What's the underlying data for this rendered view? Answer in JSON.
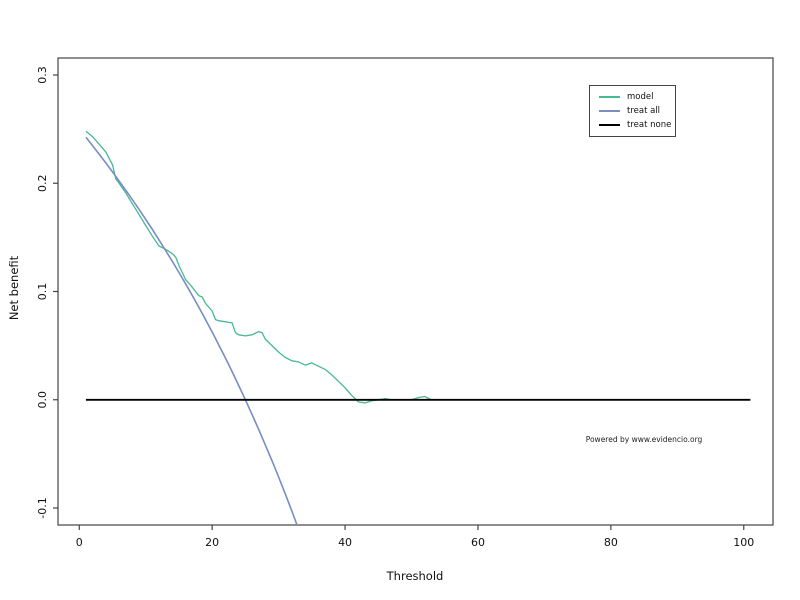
{
  "chart_data": {
    "type": "line",
    "title": "",
    "xlabel": "Threshold",
    "ylabel": "Net benefit",
    "watermark": "Powered by www.evidencio.org",
    "xlim": [
      -3.2,
      104.4
    ],
    "ylim": [
      -0.1157,
      0.3157
    ],
    "grid": false,
    "legend_position": "top-right",
    "xticks": [
      {
        "v": 0,
        "label": "0"
      },
      {
        "v": 20,
        "label": "20"
      },
      {
        "v": 40,
        "label": "40"
      },
      {
        "v": 60,
        "label": "60"
      },
      {
        "v": 80,
        "label": "80"
      },
      {
        "v": 100,
        "label": "100"
      }
    ],
    "yticks": [
      {
        "v": -0.1,
        "label": "-0.1"
      },
      {
        "v": 0.0,
        "label": "0.0"
      },
      {
        "v": 0.1,
        "label": "0.1"
      },
      {
        "v": 0.2,
        "label": "0.2"
      },
      {
        "v": 0.3,
        "label": "0.3"
      }
    ],
    "series": [
      {
        "name": "model",
        "color": "#46b996",
        "width": 1.3,
        "points": [
          [
            1,
            0.248
          ],
          [
            2,
            0.243
          ],
          [
            3,
            0.236
          ],
          [
            4,
            0.229
          ],
          [
            5,
            0.217
          ],
          [
            5.5,
            0.204
          ],
          [
            6,
            0.2
          ],
          [
            7,
            0.191
          ],
          [
            8,
            0.181
          ],
          [
            9,
            0.171
          ],
          [
            10,
            0.161
          ],
          [
            11,
            0.151
          ],
          [
            12,
            0.142
          ],
          [
            13,
            0.139
          ],
          [
            14,
            0.135
          ],
          [
            14.5,
            0.132
          ],
          [
            15,
            0.124
          ],
          [
            16,
            0.111
          ],
          [
            17,
            0.104
          ],
          [
            18,
            0.096
          ],
          [
            18.5,
            0.095
          ],
          [
            19,
            0.089
          ],
          [
            20,
            0.082
          ],
          [
            20.5,
            0.074
          ],
          [
            21,
            0.073
          ],
          [
            22,
            0.072
          ],
          [
            23,
            0.071
          ],
          [
            23.5,
            0.062
          ],
          [
            24,
            0.06
          ],
          [
            25,
            0.059
          ],
          [
            26,
            0.06
          ],
          [
            27,
            0.063
          ],
          [
            27.5,
            0.062
          ],
          [
            28,
            0.056
          ],
          [
            29,
            0.05
          ],
          [
            30,
            0.044
          ],
          [
            31,
            0.039
          ],
          [
            32,
            0.036
          ],
          [
            33,
            0.035
          ],
          [
            34,
            0.032
          ],
          [
            35,
            0.034
          ],
          [
            36,
            0.031
          ],
          [
            37,
            0.028
          ],
          [
            38,
            0.023
          ],
          [
            39,
            0.017
          ],
          [
            40,
            0.011
          ],
          [
            41,
            0.004
          ],
          [
            42,
            -0.002
          ],
          [
            43,
            -0.003
          ],
          [
            44,
            -0.001
          ],
          [
            45,
            0
          ],
          [
            46,
            0.001
          ],
          [
            47,
            0
          ],
          [
            48,
            0
          ],
          [
            50,
            0
          ],
          [
            51,
            0.002
          ],
          [
            52,
            0.003
          ],
          [
            53,
            0
          ],
          [
            55,
            0
          ],
          [
            60,
            0
          ],
          [
            65,
            0
          ],
          [
            70,
            0
          ],
          [
            75,
            0
          ],
          [
            80,
            0
          ],
          [
            85,
            0
          ],
          [
            90,
            0
          ],
          [
            95,
            0
          ],
          [
            100,
            0
          ]
        ]
      },
      {
        "name": "treat all",
        "color": "#7a8cc4",
        "width": 1.6,
        "points": [
          [
            1,
            0.2424
          ],
          [
            2,
            0.2347
          ],
          [
            3,
            0.2268
          ],
          [
            4,
            0.2188
          ],
          [
            5,
            0.2105
          ],
          [
            6,
            0.2021
          ],
          [
            7,
            0.1935
          ],
          [
            8,
            0.1848
          ],
          [
            9,
            0.1758
          ],
          [
            10,
            0.1667
          ],
          [
            11,
            0.1573
          ],
          [
            12,
            0.1477
          ],
          [
            13,
            0.1379
          ],
          [
            14,
            0.1279
          ],
          [
            15,
            0.1176
          ],
          [
            16,
            0.1071
          ],
          [
            17,
            0.0964
          ],
          [
            18,
            0.0854
          ],
          [
            19,
            0.0741
          ],
          [
            20,
            0.0625
          ],
          [
            21,
            0.0506
          ],
          [
            22,
            0.0385
          ],
          [
            23,
            0.026
          ],
          [
            24,
            0.0132
          ],
          [
            25,
            0
          ],
          [
            26,
            -0.0135
          ],
          [
            27,
            -0.0274
          ],
          [
            28,
            -0.0417
          ],
          [
            29,
            -0.0563
          ],
          [
            30,
            -0.0714
          ],
          [
            31,
            -0.087
          ],
          [
            32,
            -0.1029
          ],
          [
            33,
            -0.1194
          ]
        ]
      },
      {
        "name": "treat none",
        "color": "#000000",
        "width": 1.8,
        "points": [
          [
            1,
            0
          ],
          [
            101,
            0
          ]
        ]
      }
    ],
    "axis_color": "#444444",
    "tick_label_color": "#111111"
  }
}
